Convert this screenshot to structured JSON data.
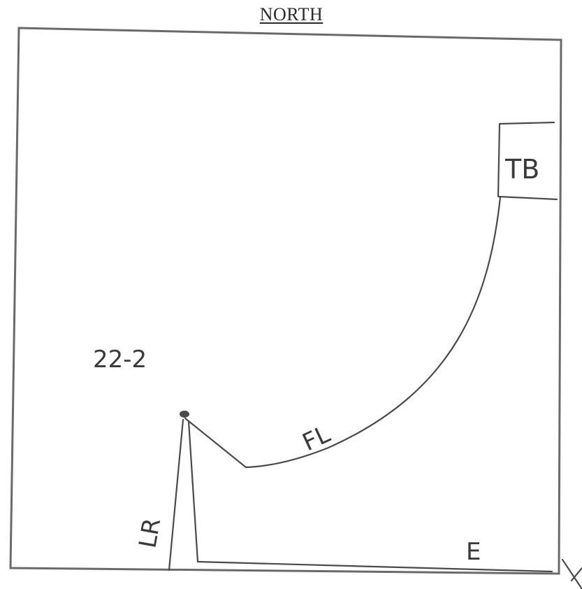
{
  "heading": "NORTH",
  "labels": {
    "point_id": "22-2",
    "box": "TB",
    "curve": "FL",
    "vertical": "LR",
    "bottom": "E"
  },
  "colors": {
    "ink": "#3a3a3a",
    "frame": "#6a6a6a",
    "background": "#ffffff"
  }
}
